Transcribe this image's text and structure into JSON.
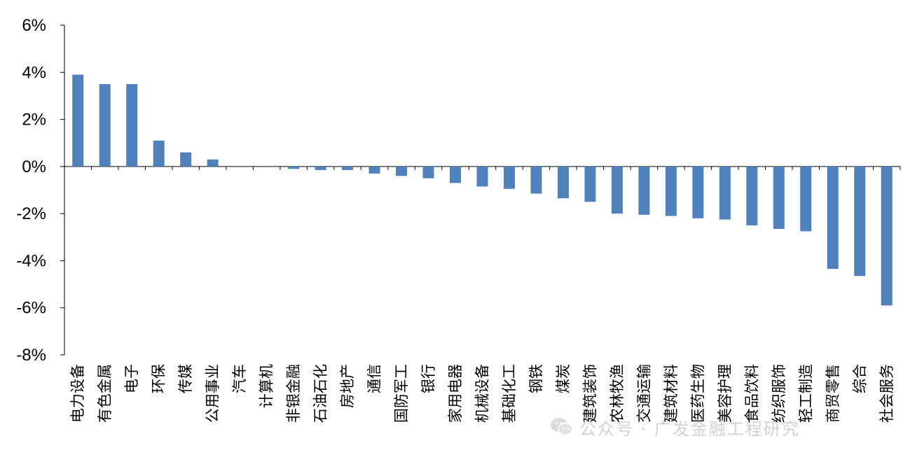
{
  "chart_data": {
    "type": "bar",
    "title": "",
    "xlabel": "",
    "ylabel": "",
    "ylim": [
      -8,
      6
    ],
    "yticks": [
      6,
      4,
      2,
      0,
      -2,
      -4,
      -6,
      -8
    ],
    "ytick_labels": [
      "6%",
      "4%",
      "2%",
      "0%",
      "-2%",
      "-4%",
      "-6%",
      "-8%"
    ],
    "bar_color": "#4F81BD",
    "grid": false,
    "categories": [
      "电力设备",
      "有色金属",
      "电子",
      "环保",
      "传媒",
      "公用事业",
      "汽车",
      "计算机",
      "非银金融",
      "石油石化",
      "房地产",
      "通信",
      "国防军工",
      "银行",
      "家用电器",
      "机械设备",
      "基础化工",
      "钢铁",
      "煤炭",
      "建筑装饰",
      "农林牧渔",
      "交通运输",
      "建筑材料",
      "医药生物",
      "美容护理",
      "食品饮料",
      "纺织服饰",
      "轻工制造",
      "商贸零售",
      "综合",
      "社会服务"
    ],
    "values": [
      3.9,
      3.5,
      3.5,
      1.1,
      0.6,
      0.3,
      0.0,
      0.0,
      -0.1,
      -0.15,
      -0.15,
      -0.3,
      -0.4,
      -0.5,
      -0.7,
      -0.85,
      -0.95,
      -1.15,
      -1.35,
      -1.5,
      -2.0,
      -2.05,
      -2.1,
      -2.2,
      -2.25,
      -2.5,
      -2.65,
      -2.75,
      -4.35,
      -4.65,
      -5.9
    ]
  },
  "watermark": {
    "icon": "wechat-icon",
    "text": "公众号 · 广发金融工程研究"
  }
}
